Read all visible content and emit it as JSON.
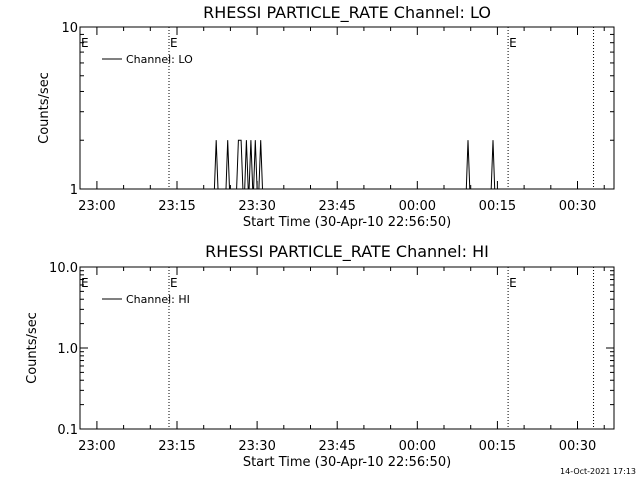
{
  "chart_data": [
    {
      "type": "line",
      "title": "RHESSI PARTICLE_RATE Channel: LO",
      "xlabel": "Start Time (30-Apr-10 22:56:50)",
      "ylabel": "Counts/sec",
      "y_scale": "log",
      "ylim": [
        1,
        10
      ],
      "y_ticks": [
        "1",
        "10"
      ],
      "x_ticks": [
        "23:00",
        "23:15",
        "23:30",
        "23:45",
        "00:00",
        "00:15",
        "00:30"
      ],
      "xlim": [
        "22:56:50",
        "00:36:50"
      ],
      "grid": false,
      "legend": {
        "position": "top-left",
        "entries": [
          "Channel: LO"
        ]
      },
      "markers": [
        {
          "time": "23:13:30",
          "label": "E"
        },
        {
          "time": "00:17:00",
          "label": "E"
        },
        {
          "time": "00:33:00",
          "label": ""
        }
      ],
      "series": [
        {
          "name": "Channel: LO",
          "points": [
            [
              "23:22:00",
              1
            ],
            [
              "23:22:20",
              2
            ],
            [
              "23:22:40",
              1
            ],
            [
              "23:24:10",
              1
            ],
            [
              "23:24:30",
              2
            ],
            [
              "23:24:50",
              1
            ],
            [
              "23:26:10",
              1
            ],
            [
              "23:26:30",
              2
            ],
            [
              "23:27:00",
              2
            ],
            [
              "23:27:20",
              1
            ],
            [
              "23:27:40",
              1
            ],
            [
              "23:28:00",
              2
            ],
            [
              "23:28:20",
              1
            ],
            [
              "23:28:30",
              1
            ],
            [
              "23:28:50",
              2
            ],
            [
              "23:29:10",
              1
            ],
            [
              "23:29:20",
              1
            ],
            [
              "23:29:40",
              2
            ],
            [
              "23:30:00",
              1
            ],
            [
              "23:30:20",
              1
            ],
            [
              "23:30:40",
              2
            ],
            [
              "23:31:00",
              1
            ],
            [
              "00:09:10",
              1
            ],
            [
              "00:09:30",
              2
            ],
            [
              "00:09:50",
              1
            ],
            [
              "00:13:50",
              1
            ],
            [
              "00:14:10",
              2
            ],
            [
              "00:14:30",
              1
            ]
          ]
        }
      ]
    },
    {
      "type": "line",
      "title": "RHESSI PARTICLE_RATE Channel: HI",
      "xlabel": "Start Time (30-Apr-10 22:56:50)",
      "ylabel": "Counts/sec",
      "y_scale": "log",
      "ylim": [
        0.1,
        10
      ],
      "y_ticks": [
        "0.1",
        "1.0",
        "10.0"
      ],
      "x_ticks": [
        "23:00",
        "23:15",
        "23:30",
        "23:45",
        "00:00",
        "00:15",
        "00:30"
      ],
      "xlim": [
        "22:56:50",
        "00:36:50"
      ],
      "grid": false,
      "legend": {
        "position": "top-left",
        "entries": [
          "Channel: HI"
        ]
      },
      "markers": [
        {
          "time": "23:13:30",
          "label": "E"
        },
        {
          "time": "00:17:00",
          "label": "E"
        },
        {
          "time": "00:33:00",
          "label": ""
        }
      ],
      "series": [
        {
          "name": "Channel: HI",
          "points": []
        }
      ]
    }
  ],
  "footer": {
    "timestamp": "14-Oct-2021 17:13"
  }
}
